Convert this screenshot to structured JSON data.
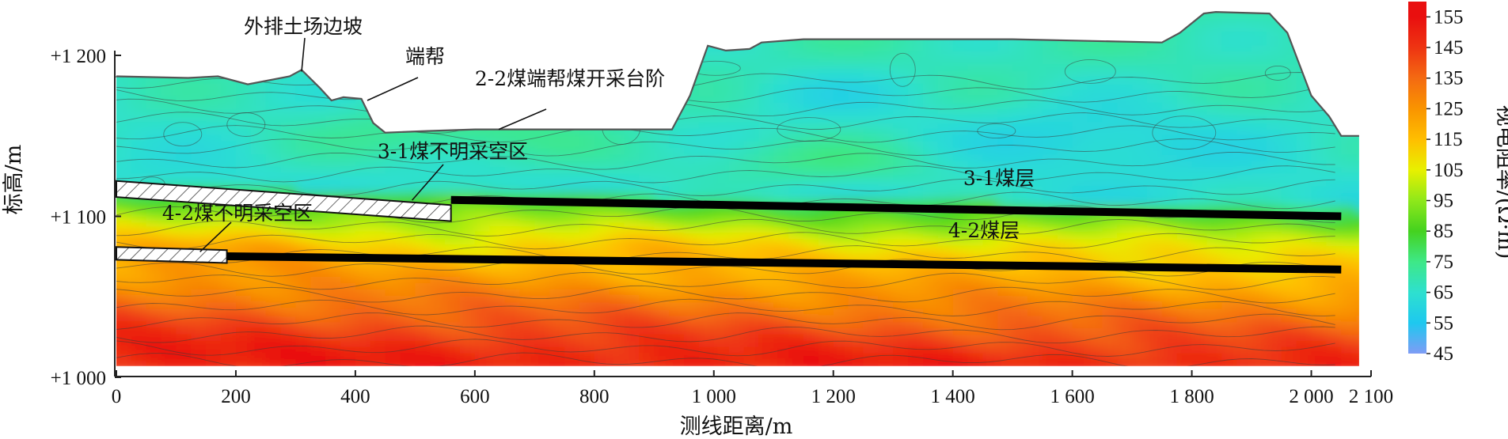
{
  "chart_data": {
    "type": "heatmap",
    "xlabel": "测线距离/m",
    "ylabel": "标高/m",
    "colorbar_label": "视电阻率/(Ω·m)",
    "xlim": [
      0,
      2100
    ],
    "ylim": [
      1000,
      1200
    ],
    "x_ticks": [
      {
        "value": 0,
        "label": "0"
      },
      {
        "value": 200,
        "label": "200"
      },
      {
        "value": 400,
        "label": "400"
      },
      {
        "value": 600,
        "label": "600"
      },
      {
        "value": 800,
        "label": "800"
      },
      {
        "value": 1000,
        "label": "1 000"
      },
      {
        "value": 1200,
        "label": "1 200"
      },
      {
        "value": 1400,
        "label": "1 400"
      },
      {
        "value": 1600,
        "label": "1 600"
      },
      {
        "value": 1800,
        "label": "1 800"
      },
      {
        "value": 2000,
        "label": "2 000"
      },
      {
        "value": 2100,
        "label": "2 100"
      }
    ],
    "y_ticks": [
      {
        "value": 1000,
        "label": "+1 000"
      },
      {
        "value": 1100,
        "label": "+1 100"
      },
      {
        "value": 1200,
        "label": "+1 200"
      }
    ],
    "colorbar": {
      "min": 45,
      "max": 160,
      "ticks": [
        45,
        55,
        65,
        75,
        85,
        95,
        105,
        115,
        125,
        135,
        145,
        155
      ],
      "colors": [
        "#7f9cf5",
        "#1ec8ef",
        "#2ee0cf",
        "#3ee887",
        "#44d21f",
        "#8fe81a",
        "#e8f000",
        "#ffbe00",
        "#f99400",
        "#f46a12",
        "#ee3412",
        "#e90f0f"
      ]
    },
    "surface_profile": [
      [
        0,
        1187
      ],
      [
        120,
        1186
      ],
      [
        170,
        1187
      ],
      [
        220,
        1182
      ],
      [
        290,
        1187
      ],
      [
        310,
        1191
      ],
      [
        340,
        1180
      ],
      [
        360,
        1172
      ],
      [
        380,
        1174
      ],
      [
        410,
        1173
      ],
      [
        430,
        1158
      ],
      [
        450,
        1152
      ],
      [
        520,
        1153
      ],
      [
        600,
        1154
      ],
      [
        700,
        1154
      ],
      [
        870,
        1154
      ],
      [
        930,
        1154
      ],
      [
        960,
        1175
      ],
      [
        990,
        1206
      ],
      [
        1020,
        1203
      ],
      [
        1060,
        1204
      ],
      [
        1080,
        1208
      ],
      [
        1150,
        1210
      ],
      [
        1300,
        1210
      ],
      [
        1500,
        1210
      ],
      [
        1750,
        1208
      ],
      [
        1780,
        1214
      ],
      [
        1820,
        1226
      ],
      [
        1840,
        1227
      ],
      [
        1930,
        1226
      ],
      [
        1960,
        1214
      ],
      [
        2000,
        1175
      ],
      [
        2030,
        1162
      ],
      [
        2050,
        1150
      ],
      [
        2080,
        1150
      ]
    ],
    "data_extent": {
      "x": [
        0,
        2050
      ],
      "y": [
        1007,
        1187
      ]
    },
    "series": [
      {
        "name": "3-1煤层",
        "points": [
          [
            0,
            1114
          ],
          [
            2050,
            1100
          ]
        ]
      },
      {
        "name": "4-2煤层",
        "points": [
          [
            0,
            1076
          ],
          [
            2050,
            1067
          ]
        ]
      }
    ],
    "zones": [
      {
        "name": "3-1煤不明采空区",
        "x": [
          0,
          560
        ],
        "y_top_left": 1122,
        "y_top_right": 1107,
        "thickness": 10
      },
      {
        "name": "4-2煤不明采空区",
        "x": [
          0,
          185
        ],
        "y_top_left": 1081,
        "y_top_right": 1079,
        "thickness": 8
      }
    ],
    "annotations": [
      {
        "text": "外排土场边坡",
        "target": [
          310,
          1190
        ]
      },
      {
        "text": "端帮",
        "target": [
          420,
          1172
        ]
      },
      {
        "text": "2-2煤端帮煤开采台阶",
        "target": [
          640,
          1154
        ]
      },
      {
        "text": "3-1煤不明采空区",
        "target": [
          495,
          1110
        ]
      },
      {
        "text": "3-1煤层",
        "target": [
          1470,
          1104
        ]
      },
      {
        "text": "4-2煤不明采空区",
        "target": [
          140,
          1078
        ]
      },
      {
        "text": "4-2煤层",
        "target": [
          1460,
          1085
        ]
      }
    ]
  }
}
